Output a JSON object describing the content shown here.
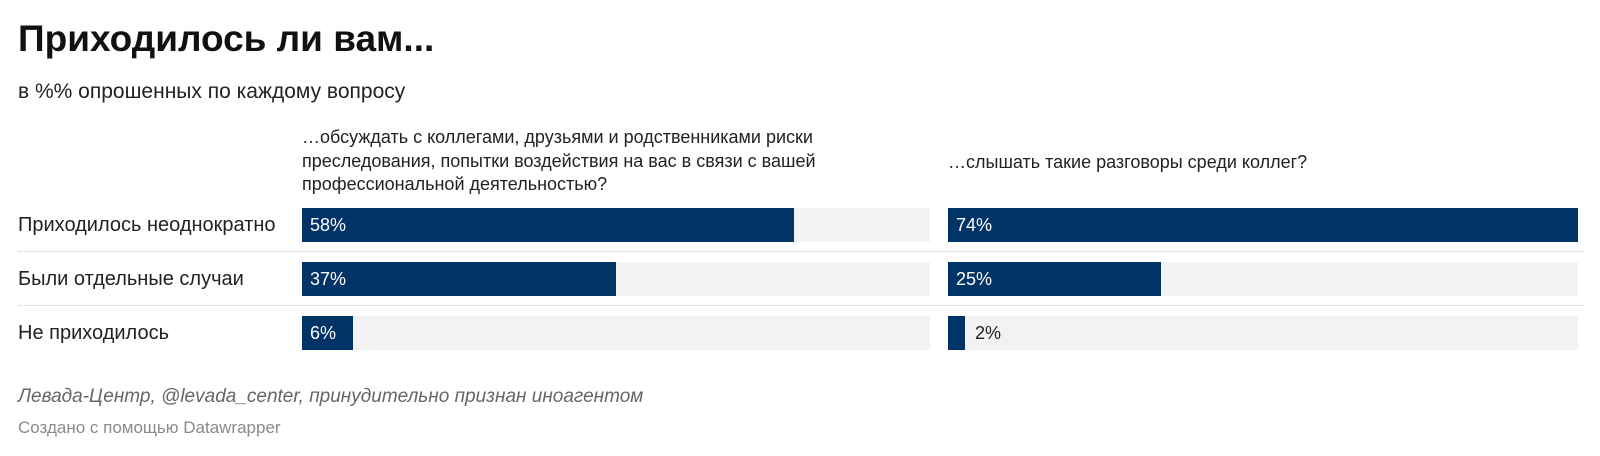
{
  "title": "Приходилось ли вам...",
  "subtitle": "в %% опрошенных по каждому вопросу",
  "source": "Левада-Центр, @levada_center, принудительно признан иноагентом",
  "credit": "Создано с помощью Datawrapper",
  "colors": {
    "bar": "#003366",
    "track": "#f2f2f2"
  },
  "chart_data": {
    "type": "bar",
    "orientation": "horizontal",
    "categories": [
      "Приходилось неоднократно",
      "Были отдельные случаи",
      "Не приходилось"
    ],
    "series": [
      {
        "name": "…обсуждать с коллегами, друзьями и родственниками риски преследования, попытки воздействия на вас в связи с вашей профессиональной деятельностью?",
        "values": [
          58,
          37,
          6
        ],
        "labels": [
          "58%",
          "37%",
          "6%"
        ]
      },
      {
        "name": "…слышать такие разговоры среди коллег?",
        "values": [
          74,
          25,
          2
        ],
        "labels": [
          "74%",
          "25%",
          "2%"
        ]
      }
    ],
    "xlim": [
      0,
      74
    ],
    "unit": "%"
  }
}
